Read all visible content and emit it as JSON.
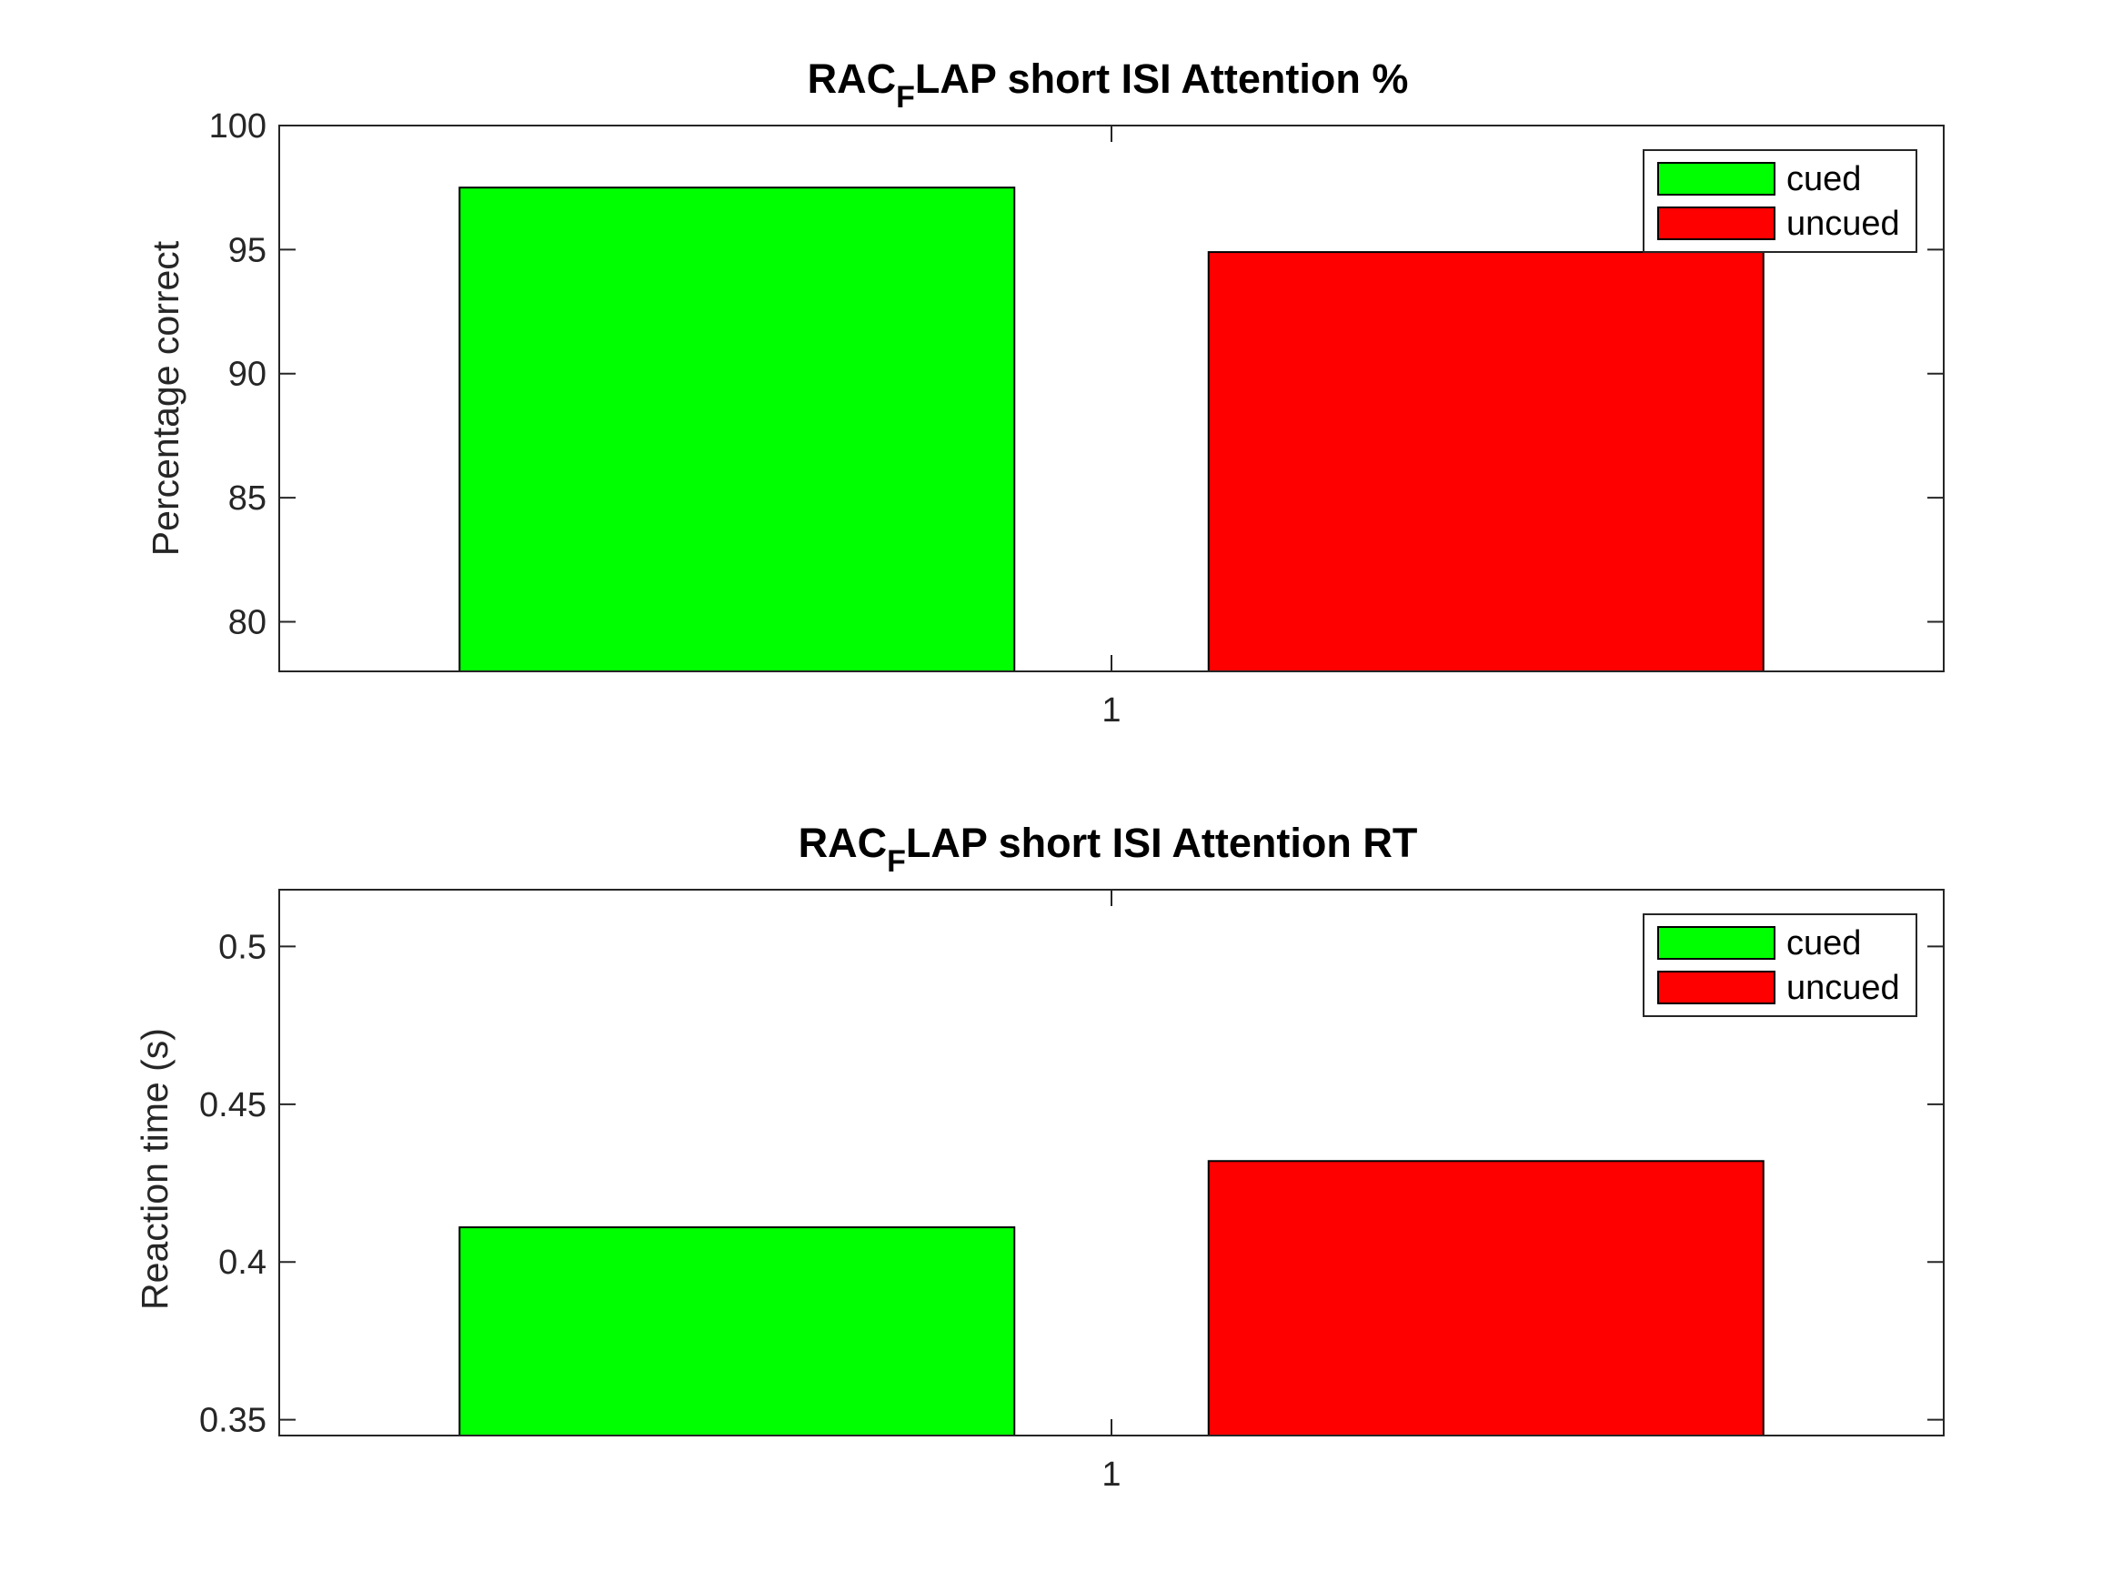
{
  "chart_data": [
    {
      "type": "bar",
      "title": {
        "prefix": "RAC",
        "subscript": "F",
        "suffix": "LAP short ISI Attention %"
      },
      "xlabel": "",
      "ylabel": "Percentage correct",
      "categories": [
        "1"
      ],
      "series": [
        {
          "name": "cued",
          "values": [
            97.5
          ],
          "color": "#00ff00"
        },
        {
          "name": "uncued",
          "values": [
            94.9
          ],
          "color": "#ff0000"
        }
      ],
      "xlim": [
        0.4,
        1.6
      ],
      "ylim": [
        78,
        100
      ],
      "yticks": [
        80,
        85,
        90,
        95,
        100
      ],
      "ytick_labels": [
        "80",
        "85",
        "90",
        "95",
        "100"
      ],
      "xticks": [
        1
      ],
      "xtick_labels": [
        "1"
      ],
      "grid": false,
      "legend": "top-right"
    },
    {
      "type": "bar",
      "title": {
        "prefix": "RAC",
        "subscript": "F",
        "suffix": "LAP short ISI Attention RT"
      },
      "xlabel": "",
      "ylabel": "Reaction time (s)",
      "categories": [
        "1"
      ],
      "series": [
        {
          "name": "cued",
          "values": [
            0.411
          ],
          "color": "#00ff00"
        },
        {
          "name": "uncued",
          "values": [
            0.432
          ],
          "color": "#ff0000"
        }
      ],
      "xlim": [
        0.4,
        1.6
      ],
      "ylim": [
        0.345,
        0.518
      ],
      "yticks": [
        0.35,
        0.4,
        0.45,
        0.5
      ],
      "ytick_labels": [
        "0.35",
        "0.4",
        "0.45",
        "0.5"
      ],
      "xticks": [
        1
      ],
      "xtick_labels": [
        "1"
      ],
      "grid": false,
      "legend": "top-right"
    }
  ]
}
